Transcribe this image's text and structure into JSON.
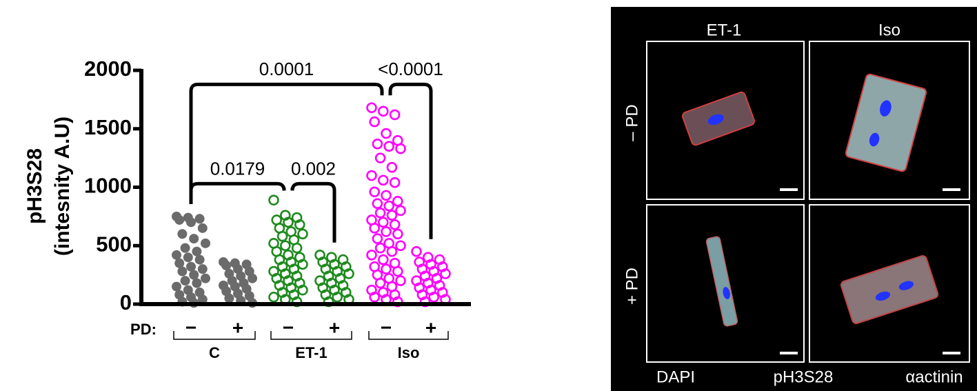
{
  "chart_data": {
    "type": "scatter",
    "y_label": [
      "pH3S28",
      "(intesnity A.U)"
    ],
    "ylim": [
      0,
      2000
    ],
    "yticks": [
      0,
      500,
      1000,
      1500,
      2000
    ],
    "pd_label": "PD:",
    "categories": [
      "−",
      "+",
      "−",
      "+",
      "−",
      "+"
    ],
    "groups": [
      "C",
      "ET-1",
      "Iso"
    ],
    "series": [
      {
        "color": "#6b6b6b",
        "marker": "filled",
        "values": [
          750,
          740,
          730,
          720,
          700,
          650,
          600,
          560,
          520,
          480,
          450,
          420,
          400,
          380,
          350,
          320,
          300,
          280,
          250,
          220,
          200,
          180,
          150,
          120,
          100,
          80,
          60,
          40,
          20,
          10
        ]
      },
      {
        "color": "#6b6b6b",
        "marker": "filled",
        "values": [
          360,
          350,
          340,
          330,
          300,
          280,
          260,
          240,
          220,
          200,
          180,
          160,
          150,
          130,
          110,
          90,
          70,
          50,
          30,
          10
        ]
      },
      {
        "color": "#1e8a1e",
        "marker": "open",
        "values": [
          890,
          760,
          740,
          720,
          700,
          680,
          650,
          620,
          600,
          580,
          550,
          520,
          500,
          480,
          450,
          420,
          400,
          380,
          360,
          340,
          320,
          300,
          280,
          260,
          240,
          220,
          200,
          180,
          160,
          140,
          120,
          100,
          80,
          60,
          40,
          20
        ]
      },
      {
        "color": "#1e8a1e",
        "marker": "open",
        "values": [
          420,
          400,
          380,
          360,
          340,
          320,
          300,
          280,
          260,
          240,
          220,
          200,
          180,
          160,
          140,
          120,
          100,
          80,
          60,
          40,
          20
        ]
      },
      {
        "color": "#ff00ff",
        "marker": "open",
        "values": [
          1680,
          1650,
          1620,
          1560,
          1460,
          1400,
          1370,
          1350,
          1330,
          1250,
          1170,
          1100,
          1060,
          1040,
          960,
          930,
          880,
          860,
          840,
          800,
          780,
          760,
          720,
          700,
          680,
          650,
          620,
          600,
          560,
          520,
          500,
          480,
          450,
          420,
          380,
          350,
          320,
          300,
          280,
          250,
          220,
          200,
          180,
          150,
          120,
          100,
          80,
          60,
          40,
          20
        ]
      },
      {
        "color": "#ff00ff",
        "marker": "open",
        "values": [
          450,
          400,
          380,
          360,
          340,
          320,
          300,
          280,
          260,
          240,
          220,
          200,
          180,
          160,
          140,
          120,
          100,
          80,
          60,
          40,
          20
        ]
      }
    ],
    "brackets": [
      {
        "from": 0,
        "to": 4,
        "y": 1880,
        "label": "0.0001"
      },
      {
        "from": 4,
        "to": 5,
        "y": 1880,
        "label": "<0.0001"
      },
      {
        "from": 0,
        "to": 2,
        "y": 1030,
        "label": "0.0179"
      },
      {
        "from": 2,
        "to": 3,
        "y": 1030,
        "label": "0.002"
      }
    ]
  },
  "micrograph": {
    "columns": [
      "ET-1",
      "Iso"
    ],
    "rows": [
      "– PD",
      "+ PD"
    ],
    "legend": [
      {
        "label": "DAPI",
        "color": "#2233ff"
      },
      {
        "label": "pH3S28",
        "color": "#ff2020"
      },
      {
        "label": "αactinin",
        "color": "#33dddd"
      }
    ]
  }
}
